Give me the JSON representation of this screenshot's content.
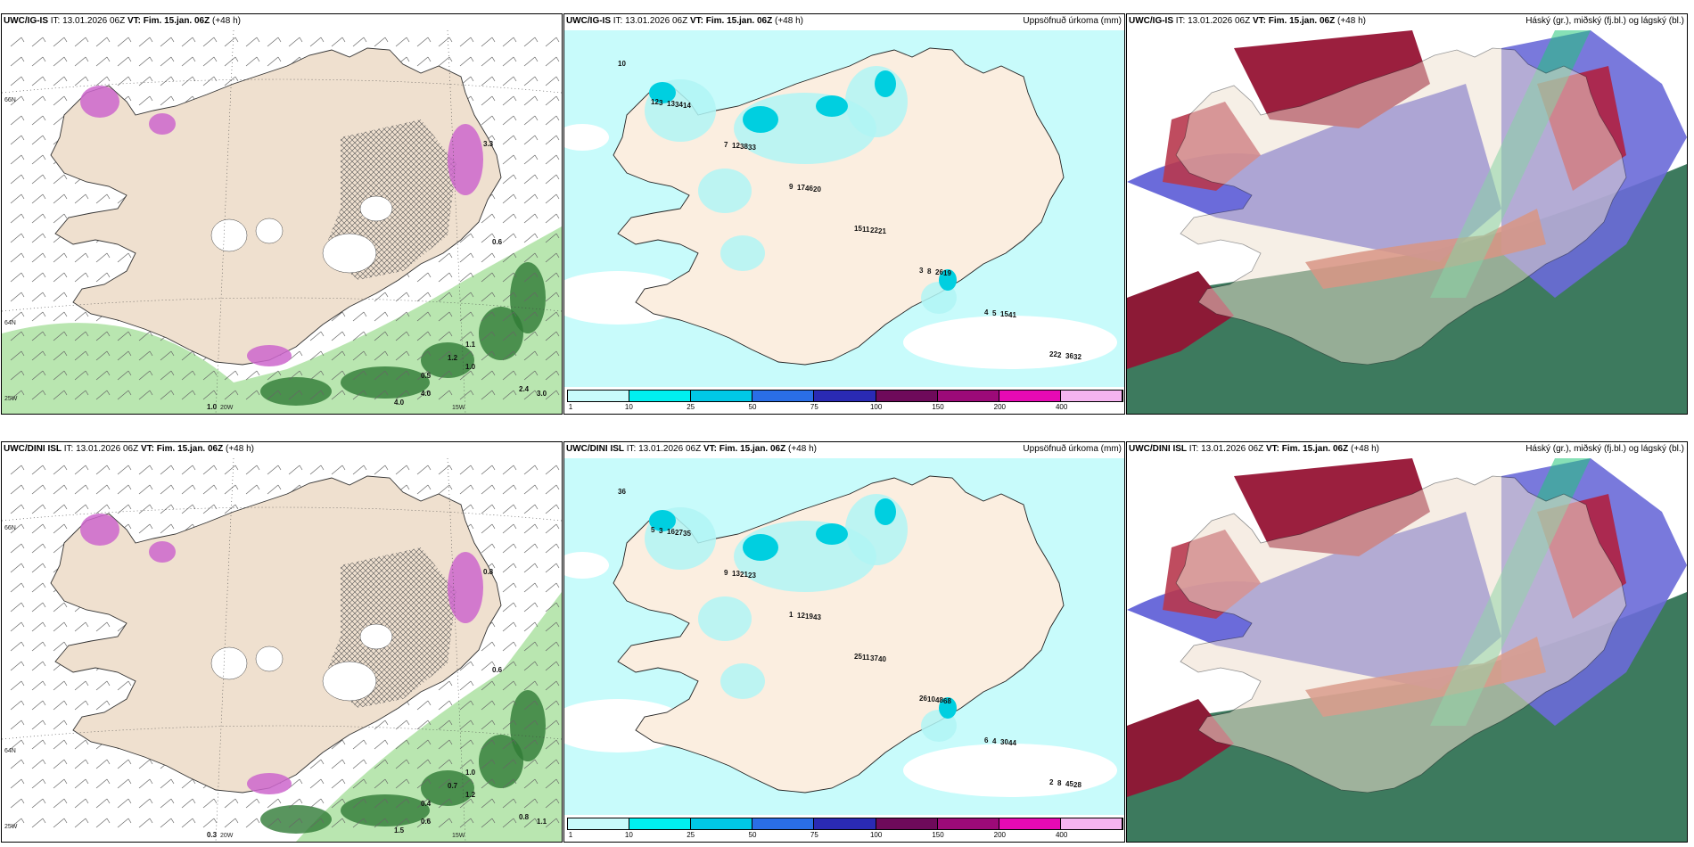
{
  "panels": [
    {
      "model": "UWC/IG-IS",
      "it_label": "IT:",
      "it": "13.01.2026 06Z",
      "vt_label": "VT:",
      "vt": "Fim. 15.jan. 06Z",
      "lead": "(+48 h)",
      "title": ""
    },
    {
      "model": "UWC/IG-IS",
      "it_label": "IT:",
      "it": "13.01.2026 06Z",
      "vt_label": "VT:",
      "vt": "Fim. 15.jan. 06Z",
      "lead": "(+48 h)",
      "title": "Uppsöfnuð úrkoma (mm)"
    },
    {
      "model": "UWC/IG-IS",
      "it_label": "IT:",
      "it": "13.01.2026 06Z",
      "vt_label": "VT:",
      "vt": "Fim. 15.jan. 06Z",
      "lead": "(+48 h)",
      "title": "Háský (gr.), miðský (fj.bl.) og lágský (bl.)"
    },
    {
      "model": "UWC/DINI ISL",
      "it_label": "IT:",
      "it": "13.01.2026 06Z",
      "vt_label": "VT:",
      "vt": "Fim. 15.jan. 06Z",
      "lead": "(+48 h)",
      "title": ""
    },
    {
      "model": "UWC/DINI ISL",
      "it_label": "IT:",
      "it": "13.01.2026 06Z",
      "vt_label": "VT:",
      "vt": "Fim. 15.jan. 06Z",
      "lead": "(+48 h)",
      "title": "Uppsöfnuð úrkoma (mm)"
    },
    {
      "model": "UWC/DINI ISL",
      "it_label": "IT:",
      "it": "13.01.2026 06Z",
      "vt_label": "VT:",
      "vt": "Fim. 15.jan. 06Z",
      "lead": "(+48 h)",
      "title": "Háský (gr.), miðský (fj.bl.) og lágský (bl.)"
    }
  ],
  "wind_map_labels": {
    "lat66": "66N",
    "lat64": "64N",
    "lon25": "25W",
    "lon20": "20W",
    "lon15": "15W"
  },
  "legend": {
    "colors": [
      "#c8fbfb",
      "#00f0f0",
      "#00c8e6",
      "#2a6ee6",
      "#2a2ab4",
      "#6e0a5a",
      "#9c0a78",
      "#e60ab4",
      "#f5b4f0"
    ],
    "ticks": [
      "1",
      "10",
      "25",
      "50",
      "75",
      "100",
      "150",
      "200",
      "400"
    ]
  },
  "precip_top": [
    {
      "v": "10"
    },
    {
      "v": "14"
    },
    {
      "v": "33"
    },
    {
      "v": "20"
    },
    {
      "v": "21"
    },
    {
      "v": "19"
    },
    {
      "v": "41"
    },
    {
      "v": "32"
    },
    {
      "v": "34"
    },
    {
      "v": "38"
    },
    {
      "v": "46"
    },
    {
      "v": "22"
    },
    {
      "v": "26"
    },
    {
      "v": "15"
    },
    {
      "v": "36"
    },
    {
      "v": "13"
    },
    {
      "v": "12"
    },
    {
      "v": "17"
    },
    {
      "v": "11"
    },
    {
      "v": "8"
    },
    {
      "v": "5"
    },
    {
      "v": "2"
    },
    {
      "v": "3"
    },
    {
      "v": "7"
    },
    {
      "v": "9"
    },
    {
      "v": "15"
    },
    {
      "v": "3"
    },
    {
      "v": "4"
    },
    {
      "v": "22"
    },
    {
      "v": "12"
    }
  ],
  "precip_bottom": [
    {
      "v": "36"
    },
    {
      "v": "35"
    },
    {
      "v": "23"
    },
    {
      "v": "43"
    },
    {
      "v": "40"
    },
    {
      "v": "68"
    },
    {
      "v": "44"
    },
    {
      "v": "28"
    },
    {
      "v": "27"
    },
    {
      "v": "21"
    },
    {
      "v": "19"
    },
    {
      "v": "37"
    },
    {
      "v": "48"
    },
    {
      "v": "30"
    },
    {
      "v": "45"
    },
    {
      "v": "16"
    },
    {
      "v": "13"
    },
    {
      "v": "12"
    },
    {
      "v": "11"
    },
    {
      "v": "10"
    },
    {
      "v": "4"
    },
    {
      "v": "8"
    },
    {
      "v": "3"
    },
    {
      "v": "9"
    },
    {
      "v": "1"
    },
    {
      "v": "25"
    },
    {
      "v": "26"
    },
    {
      "v": "6"
    },
    {
      "v": "2"
    },
    {
      "v": "5"
    }
  ],
  "wind_top_labels": [
    {
      "v": "1.0"
    },
    {
      "v": "0.5"
    },
    {
      "v": "1.2"
    },
    {
      "v": "4.0"
    },
    {
      "v": "2.4"
    },
    {
      "v": "1.1"
    },
    {
      "v": "0.6"
    },
    {
      "v": "3.0"
    },
    {
      "v": "1.0"
    },
    {
      "v": "4.0"
    },
    {
      "v": "3.3"
    }
  ],
  "wind_bottom_labels": [
    {
      "v": "0.3"
    },
    {
      "v": "0.4"
    },
    {
      "v": "0.7"
    },
    {
      "v": "0.6"
    },
    {
      "v": "0.8"
    },
    {
      "v": "1.0"
    },
    {
      "v": "0.6"
    },
    {
      "v": "1.1"
    },
    {
      "v": "1.2"
    },
    {
      "v": "1.5"
    },
    {
      "v": "0.8"
    }
  ]
}
